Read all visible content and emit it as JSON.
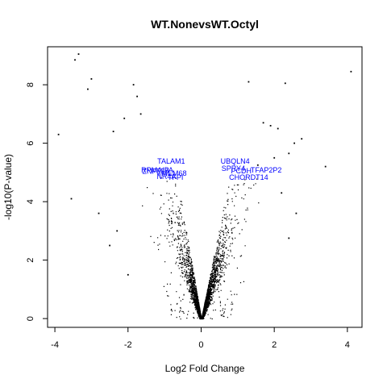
{
  "chart_data": {
    "type": "scatter",
    "title": "WT.NonevsWT.Octyl",
    "xlabel": "Log2 Fold Change",
    "ylabel": "-log10(P-value)",
    "xlim": [
      -4.2,
      4.4
    ],
    "ylim": [
      -0.3,
      9.3
    ],
    "x_ticks": [
      -4,
      -2,
      0,
      2,
      4
    ],
    "y_ticks": [
      0,
      2,
      4,
      6,
      8
    ],
    "grid": false,
    "point_color": "#000000",
    "label_color": "#0000ff",
    "points": [
      {
        "x": -3.35,
        "y": 9.05
      },
      {
        "x": -3.45,
        "y": 8.85
      },
      {
        "x": -3.0,
        "y": 8.2
      },
      {
        "x": -3.1,
        "y": 7.85
      },
      {
        "x": -1.85,
        "y": 8.0
      },
      {
        "x": -1.75,
        "y": 7.6
      },
      {
        "x": -1.65,
        "y": 7.0
      },
      {
        "x": -3.9,
        "y": 6.3
      },
      {
        "x": -2.4,
        "y": 6.4
      },
      {
        "x": -2.1,
        "y": 6.85
      },
      {
        "x": -3.55,
        "y": 4.1
      },
      {
        "x": -2.8,
        "y": 3.6
      },
      {
        "x": -2.5,
        "y": 2.5
      },
      {
        "x": -2.3,
        "y": 3.0
      },
      {
        "x": -2.0,
        "y": 1.5
      },
      {
        "x": 4.1,
        "y": 8.45
      },
      {
        "x": 2.3,
        "y": 8.05
      },
      {
        "x": 1.3,
        "y": 8.1
      },
      {
        "x": 1.7,
        "y": 6.7
      },
      {
        "x": 1.9,
        "y": 6.6
      },
      {
        "x": 2.1,
        "y": 6.5
      },
      {
        "x": 2.55,
        "y": 6.0
      },
      {
        "x": 2.75,
        "y": 6.15
      },
      {
        "x": 2.4,
        "y": 5.65
      },
      {
        "x": 3.4,
        "y": 5.2
      },
      {
        "x": 2.6,
        "y": 3.6
      },
      {
        "x": 2.2,
        "y": 4.3
      },
      {
        "x": 2.4,
        "y": 2.75
      },
      {
        "x": 2.0,
        "y": 5.5
      },
      {
        "x": 1.55,
        "y": 5.25
      }
    ],
    "annotations": [
      {
        "text": "TALAM1",
        "x": -0.82,
        "y": 5.3
      },
      {
        "text": "RPMAIPA",
        "x": -1.2,
        "y": 5.0
      },
      {
        "text": "ZNF550",
        "x": -1.25,
        "y": 4.95
      },
      {
        "text": "TMEM68",
        "x": -0.8,
        "y": 4.88
      },
      {
        "text": "NR4A",
        "x": -0.95,
        "y": 4.78
      },
      {
        "text": "TFPI",
        "x": -0.7,
        "y": 4.75
      },
      {
        "text": "UBQLN4",
        "x": 0.93,
        "y": 5.3
      },
      {
        "text": "SPRY4",
        "x": 0.88,
        "y": 5.05
      },
      {
        "text": "PCDH",
        "x": 1.1,
        "y": 4.97
      },
      {
        "text": "TFAP2P2",
        "x": 1.78,
        "y": 5.0
      },
      {
        "text": "CHORDT14",
        "x": 1.3,
        "y": 4.75
      }
    ]
  }
}
